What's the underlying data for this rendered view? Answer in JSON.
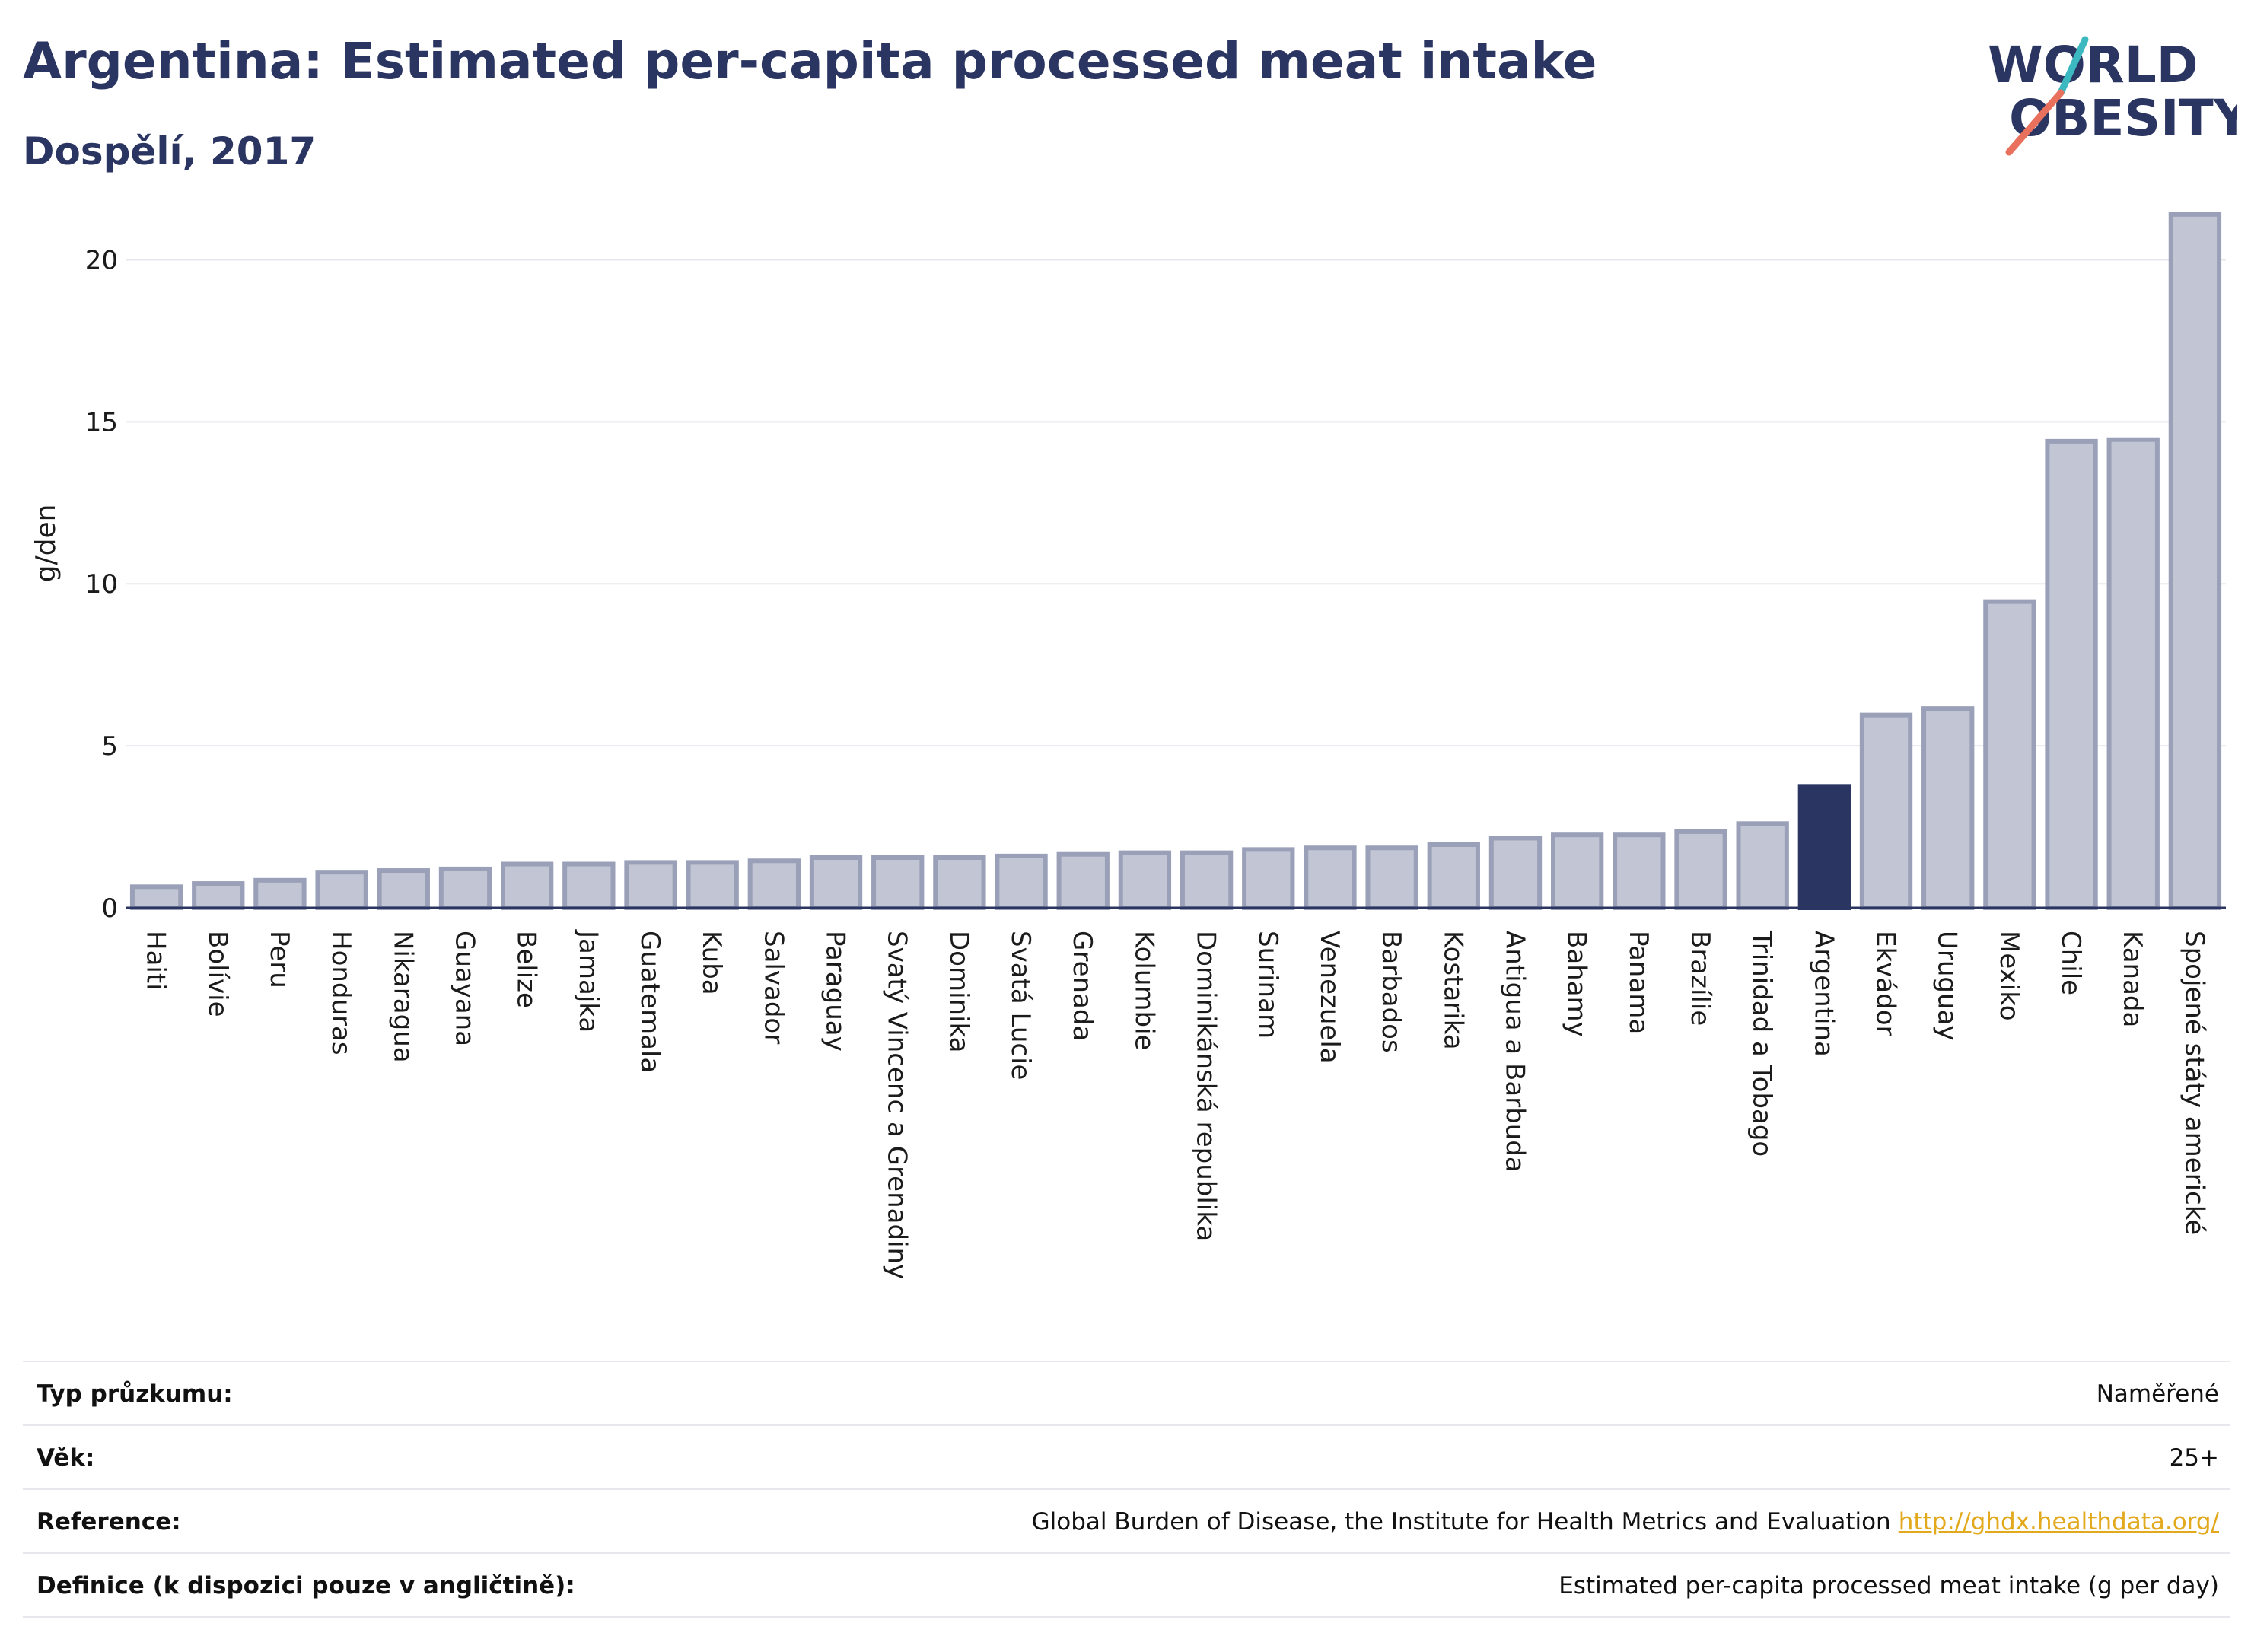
{
  "header": {
    "title": "Argentina: Estimated per-capita processed meat intake",
    "subtitle": "Dospělí, 2017"
  },
  "logo": {
    "line1": "WORLD",
    "line2": "OBESITY"
  },
  "colors": {
    "bar_fill": "#c2c6d4",
    "bar_stroke": "#9aa0b8",
    "highlight": "#2b3561",
    "title": "#2b3561",
    "grid": "#e6e8ee",
    "logo_teal": "#3bb8c0",
    "logo_coral": "#e8705c",
    "link": "#e3a91d"
  },
  "chart_data": {
    "type": "bar",
    "ylabel": "g/den",
    "ylim": [
      0,
      22.5
    ],
    "yticks": [
      0,
      5,
      10,
      15,
      20
    ],
    "grid": true,
    "highlight": "Argentina",
    "categories": [
      "Haiti",
      "Bolívie",
      "Peru",
      "Honduras",
      "Nikaragua",
      "Guayana",
      "Belize",
      "Jamajka",
      "Guatemala",
      "Kuba",
      "Salvador",
      "Paraguay",
      "Svatý Vincenc a Grenadiny",
      "Dominika",
      "Svatá Lucie",
      "Grenada",
      "Kolumbie",
      "Dominikánská republika",
      "Surinam",
      "Venezuela",
      "Barbados",
      "Kostarika",
      "Antigua a Barbuda",
      "Bahamy",
      "Panama",
      "Brazílie",
      "Trinidad a Tobago",
      "Argentina",
      "Ekvádor",
      "Uruguay",
      "Mexiko",
      "Chile",
      "Kanada",
      "Spojené státy americké"
    ],
    "values": [
      0.65,
      0.75,
      0.85,
      1.1,
      1.15,
      1.2,
      1.35,
      1.35,
      1.4,
      1.4,
      1.45,
      1.55,
      1.55,
      1.55,
      1.6,
      1.65,
      1.7,
      1.7,
      1.8,
      1.85,
      1.85,
      1.95,
      2.15,
      2.25,
      2.25,
      2.35,
      2.6,
      3.75,
      5.95,
      6.15,
      9.45,
      14.4,
      14.45,
      21.4
    ]
  },
  "meta": {
    "rows": [
      {
        "label": "Typ průzkumu:",
        "value": "Naměřené"
      },
      {
        "label": "Věk:",
        "value": "25+"
      },
      {
        "label": "Reference:",
        "value": "Global Burden of Disease, the Institute for Health Metrics and Evaluation",
        "link": "http://ghdx.healthdata.org/"
      },
      {
        "label": "Definice (k dispozici pouze v angličtině):",
        "value": "Estimated per-capita processed meat intake (g per day)"
      }
    ]
  }
}
